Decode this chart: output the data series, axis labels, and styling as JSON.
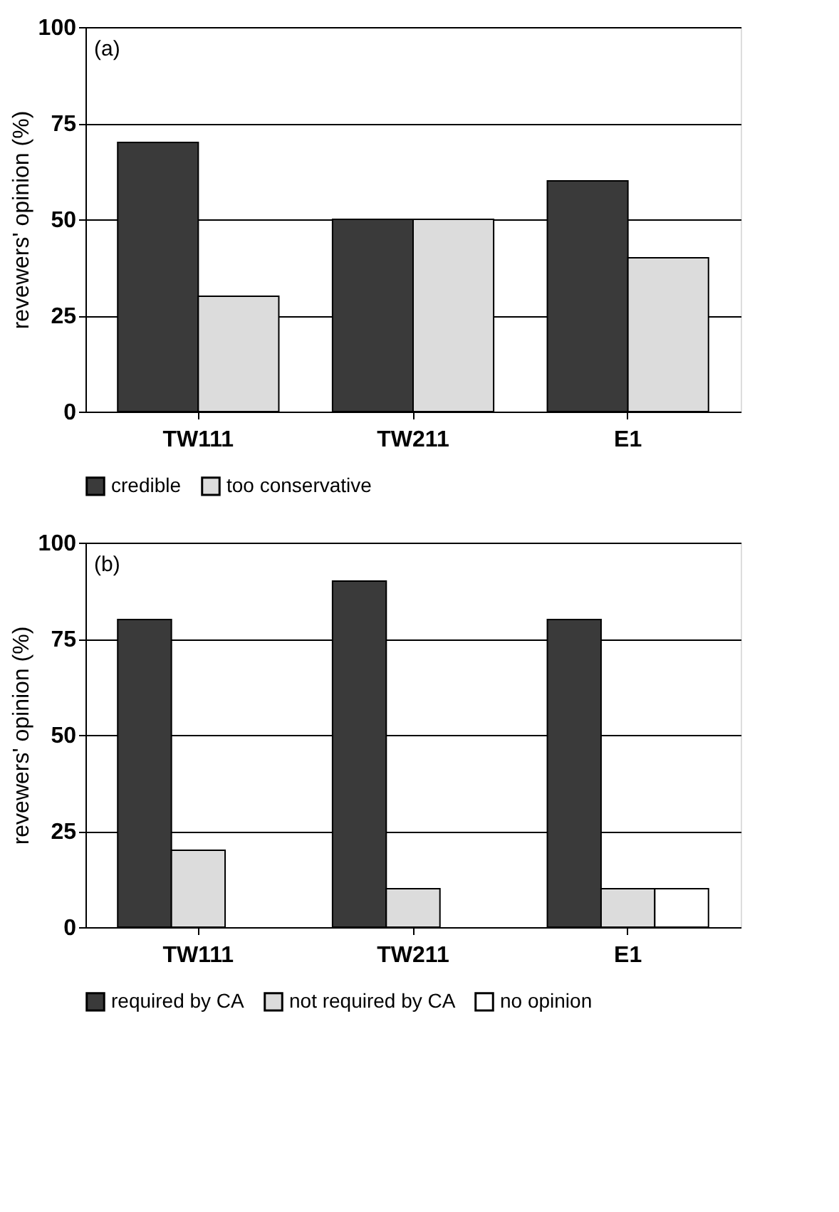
{
  "chart_data": [
    {
      "type": "bar",
      "categories": [
        "TW111",
        "TW211",
        "E1"
      ],
      "ylabel": "revewers' opinion (%)",
      "ylim": [
        0,
        100
      ],
      "yticks": [
        0,
        25,
        50,
        75,
        100
      ],
      "grid": "y",
      "legend": "bottom",
      "annotations": [
        "(a)"
      ],
      "series": [
        {
          "name": "credible",
          "color": "#3a3a3a",
          "values": [
            70,
            50,
            60
          ]
        },
        {
          "name": "too conservative",
          "color": "#dcdcdc",
          "values": [
            30,
            50,
            40
          ]
        }
      ]
    },
    {
      "type": "bar",
      "categories": [
        "TW111",
        "TW211",
        "E1"
      ],
      "ylabel": "revewers' opinion (%)",
      "ylim": [
        0,
        100
      ],
      "yticks": [
        0,
        25,
        50,
        75,
        100
      ],
      "grid": "y",
      "legend": "bottom",
      "annotations": [
        "(b)"
      ],
      "series": [
        {
          "name": "required by CA",
          "color": "#3a3a3a",
          "values": [
            80,
            90,
            80
          ]
        },
        {
          "name": "not required by CA",
          "color": "#dcdcdc",
          "values": [
            20,
            10,
            10
          ]
        },
        {
          "name": "no opinion",
          "color": "#ffffff",
          "values": [
            null,
            null,
            10
          ]
        }
      ]
    }
  ]
}
